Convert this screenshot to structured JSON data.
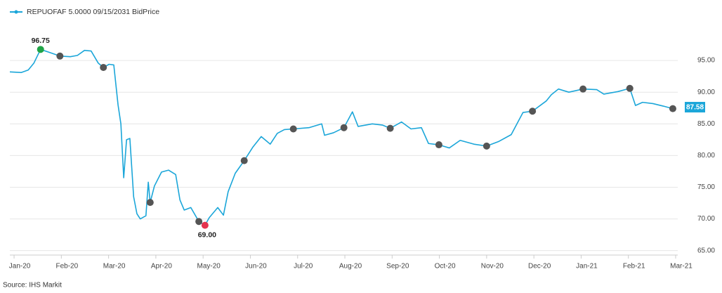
{
  "chart_data": {
    "type": "line",
    "series": [
      {
        "name": "REPUOFAF 5.0000 09/15/2031 BidPrice",
        "color": "#1ba6d9",
        "x": [
          -0.09,
          0.15,
          0.3,
          0.42,
          0.56,
          0.74,
          0.97,
          1.19,
          1.34,
          1.49,
          1.63,
          1.78,
          1.89,
          2.01,
          2.11,
          2.2,
          2.26,
          2.32,
          2.38,
          2.45,
          2.53,
          2.6,
          2.67,
          2.79,
          2.84,
          2.88,
          2.97,
          3.12,
          3.27,
          3.42,
          3.51,
          3.6,
          3.74,
          3.91,
          4.04,
          4.13,
          4.31,
          4.43,
          4.53,
          4.68,
          4.87,
          5.05,
          5.23,
          5.42,
          5.57,
          5.72,
          5.91,
          6.24,
          6.51,
          6.57,
          6.76,
          6.98,
          7.16,
          7.28,
          7.58,
          7.8,
          7.96,
          8.2,
          8.4,
          8.62,
          8.77,
          8.99,
          9.21,
          9.44,
          9.73,
          10.0,
          10.25,
          10.52,
          10.77,
          10.97,
          11.26,
          11.37,
          11.52,
          11.74,
          12.04,
          12.33,
          12.48,
          12.78,
          13.03,
          13.15,
          13.3,
          13.52,
          13.74,
          13.94,
          14.0
        ],
        "values": [
          93.2,
          93.1,
          93.5,
          94.6,
          96.75,
          96.3,
          95.7,
          95.6,
          95.8,
          96.6,
          96.5,
          94.6,
          93.9,
          94.4,
          94.3,
          88.0,
          85.0,
          76.5,
          82.5,
          82.7,
          73.5,
          70.8,
          70.0,
          70.5,
          75.8,
          72.6,
          75.2,
          77.4,
          77.7,
          77.0,
          73.0,
          71.4,
          71.8,
          69.6,
          69.0,
          70.2,
          71.8,
          70.6,
          74.3,
          77.2,
          79.2,
          81.3,
          83.0,
          81.8,
          83.5,
          84.1,
          84.2,
          84.4,
          85.0,
          83.2,
          83.6,
          84.4,
          86.9,
          84.6,
          85.0,
          84.8,
          84.3,
          85.3,
          84.2,
          84.4,
          81.9,
          81.7,
          81.2,
          82.4,
          81.8,
          81.5,
          82.2,
          83.3,
          86.8,
          87.0,
          88.6,
          89.6,
          90.5,
          90.0,
          90.5,
          90.4,
          89.7,
          90.1,
          90.6,
          87.9,
          88.4,
          88.2,
          87.8,
          87.4,
          87.58
        ]
      }
    ],
    "markers": {
      "color": "#555555",
      "x": [
        0.97,
        1.89,
        2.88,
        3.91,
        4.87,
        5.91,
        6.98,
        7.96,
        8.99,
        10.0,
        10.97,
        12.04,
        13.03,
        13.94
      ],
      "values": [
        95.7,
        93.9,
        72.6,
        69.6,
        79.2,
        84.2,
        84.4,
        84.3,
        81.7,
        81.5,
        87.0,
        90.5,
        90.6,
        87.4
      ]
    },
    "high": {
      "x": 0.56,
      "value": 96.75,
      "color": "#1fa446"
    },
    "low": {
      "x": 4.04,
      "value": 69,
      "value_label": "69.00",
      "color": "#e5334f"
    },
    "last": {
      "x": 14.0,
      "value": 87.58
    },
    "xlim": [
      -0.09,
      14.0
    ],
    "xticks": [
      {
        "value": 0,
        "label": "Jan-20"
      },
      {
        "value": 1,
        "label": "Feb-20"
      },
      {
        "value": 2,
        "label": "Mar-20"
      },
      {
        "value": 3,
        "label": "Apr-20"
      },
      {
        "value": 4,
        "label": "May-20"
      },
      {
        "value": 5,
        "label": "Jun-20"
      },
      {
        "value": 6,
        "label": "Jul-20"
      },
      {
        "value": 7,
        "label": "Aug-20"
      },
      {
        "value": 8,
        "label": "Sep-20"
      },
      {
        "value": 9,
        "label": "Oct-20"
      },
      {
        "value": 10,
        "label": "Nov-20"
      },
      {
        "value": 11,
        "label": "Dec-20"
      },
      {
        "value": 12,
        "label": "Jan-21"
      },
      {
        "value": 13,
        "label": "Feb-21"
      },
      {
        "value": 14,
        "label": "Mar-21"
      }
    ],
    "ylim": [
      64.3,
      100
    ],
    "yticks": [
      {
        "value": 65,
        "label": "65.00"
      },
      {
        "value": 70,
        "label": "70.00"
      },
      {
        "value": 75,
        "label": "75.00"
      },
      {
        "value": 80,
        "label": "80.00"
      },
      {
        "value": 85,
        "label": "85.00"
      },
      {
        "value": 90,
        "label": "90.00"
      },
      {
        "value": 95,
        "label": "95.00"
      }
    ],
    "grid": true,
    "legend": "top-left",
    "source": "Source: IHS  Markit"
  }
}
